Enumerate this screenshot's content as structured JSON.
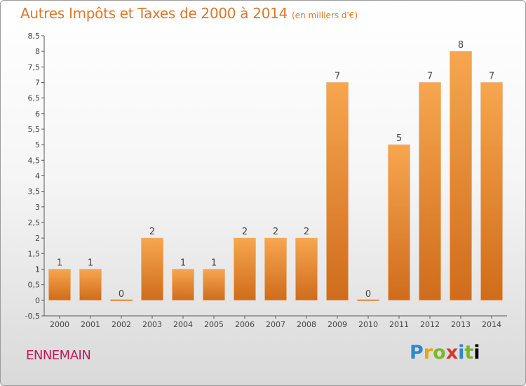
{
  "header": {
    "title": "Autres Impôts et Taxes de 2000 à 2014",
    "unit_note": "(en milliers d'€)"
  },
  "footer": {
    "commune": "ENNEMAIN",
    "brand": "Proxiti",
    "brand_letters": [
      "P",
      "r",
      "o",
      "x",
      "i",
      "t",
      "i"
    ]
  },
  "colors": {
    "title": "#d9782d",
    "commune": "#c2185b",
    "bar_light": "#f7a64f",
    "bar_dark": "#cf6c1b"
  },
  "chart_data": {
    "type": "bar",
    "title": "Autres Impôts et Taxes de 2000 à 2014",
    "subtitle": "(en milliers d'€)",
    "categories": [
      "2000",
      "2001",
      "2002",
      "2003",
      "2004",
      "2005",
      "2006",
      "2007",
      "2008",
      "2009",
      "2010",
      "2011",
      "2012",
      "2013",
      "2014"
    ],
    "values": [
      1,
      1,
      0,
      2,
      1,
      1,
      2,
      2,
      2,
      7,
      0,
      5,
      7,
      8,
      7
    ],
    "data_labels": [
      "1",
      "1",
      "0",
      "2",
      "1",
      "1",
      "2",
      "2",
      "2",
      "7",
      "0",
      "5",
      "7",
      "8",
      "7"
    ],
    "y_ticks": [
      "-0,5",
      "0",
      "0,5",
      "1",
      "1",
      "1,5",
      "2",
      "2,5",
      "3",
      "3,5",
      "4",
      "4,5",
      "5",
      "5,5",
      "6",
      "6,5",
      "7",
      "7,5",
      "8",
      "8,5"
    ],
    "ylim": [
      -0.5,
      8.5
    ],
    "grid": false,
    "legend": "none"
  }
}
